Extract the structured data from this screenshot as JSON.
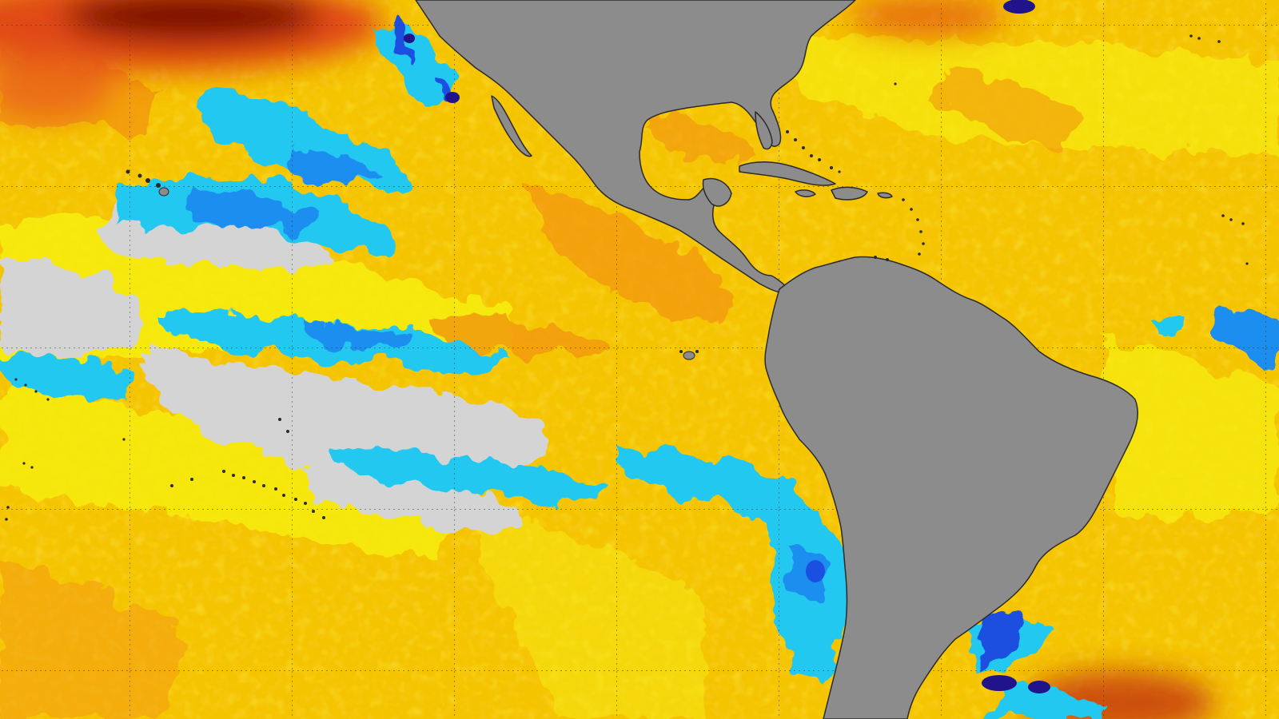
{
  "map": {
    "kind": "sea-surface-temperature-anomaly",
    "graticule": "dotted",
    "labels_visible": false,
    "colors": {
      "land": "#8c8c8c",
      "coastline": "#2a2a2a",
      "neutral": "#d4d4d4",
      "warm_light": "#f6ec10",
      "warm": "#f5c400",
      "warm_orange": "#f29a10",
      "hot": "#e04a12",
      "very_hot": "#7a0f06",
      "cool_light": "#22c8f0",
      "cool": "#1e8ef0",
      "cold": "#1a4fe0",
      "very_cold": "#20148a"
    },
    "regions": [
      "north-america",
      "central-america",
      "south-america",
      "caribbean-islands",
      "eastern-pacific-ocean",
      "atlantic-ocean",
      "hawaiian-islands",
      "galapagos-islands",
      "french-polynesia-islands"
    ]
  }
}
